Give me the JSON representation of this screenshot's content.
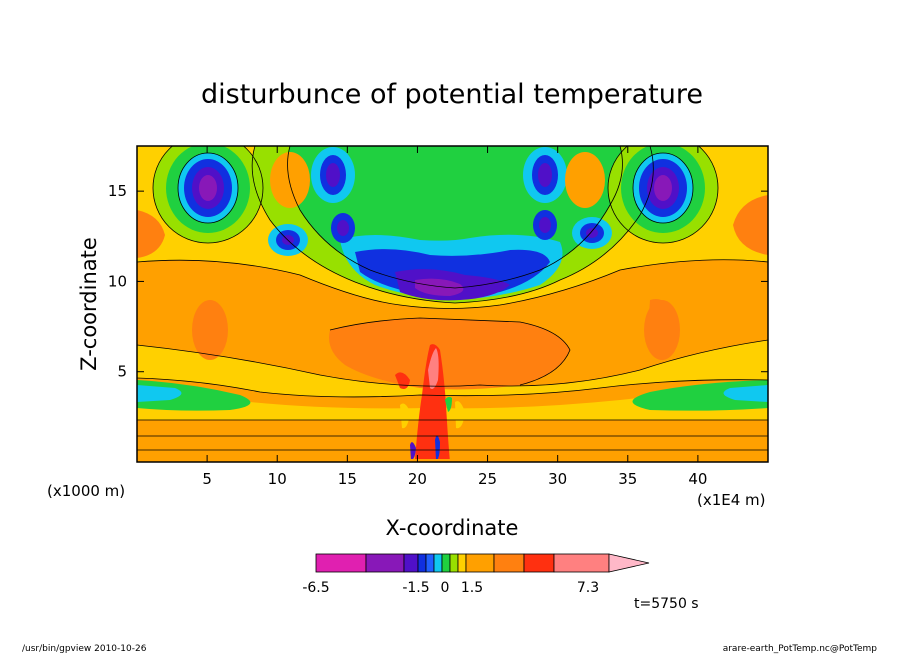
{
  "chart_data": {
    "type": "heatmap",
    "title": "disturbunce of potential temperature",
    "xlabel": "X-coordinate",
    "ylabel": "Z-coordinate",
    "x_unit_label": "(x1E4 m)",
    "y_unit_label": "(x1000 m)",
    "x_range": [
      0,
      45
    ],
    "y_range": [
      0,
      17.5
    ],
    "x_ticks": [
      5,
      10,
      15,
      20,
      25,
      30,
      35,
      40
    ],
    "y_ticks": [
      5,
      10,
      15
    ],
    "colorbar": {
      "colors": [
        "#e020b0",
        "#8818b8",
        "#5010c8",
        "#1030e0",
        "#2060ff",
        "#10c8f0",
        "#20d040",
        "#98e000",
        "#ffd000",
        "#ffa000",
        "#ff8010",
        "#ff3010",
        "#ff8080",
        "#ffb8c8"
      ],
      "tick_labels": [
        "-6.5",
        "-1.5",
        "0",
        "1.5",
        "7.3"
      ],
      "extend": "max"
    },
    "annotation_time": "t=5750 s"
  },
  "footer": {
    "left": "/usr/bin/gpview   2010-10-26",
    "right": "arare-earth_PotTemp.nc@PotTemp"
  }
}
